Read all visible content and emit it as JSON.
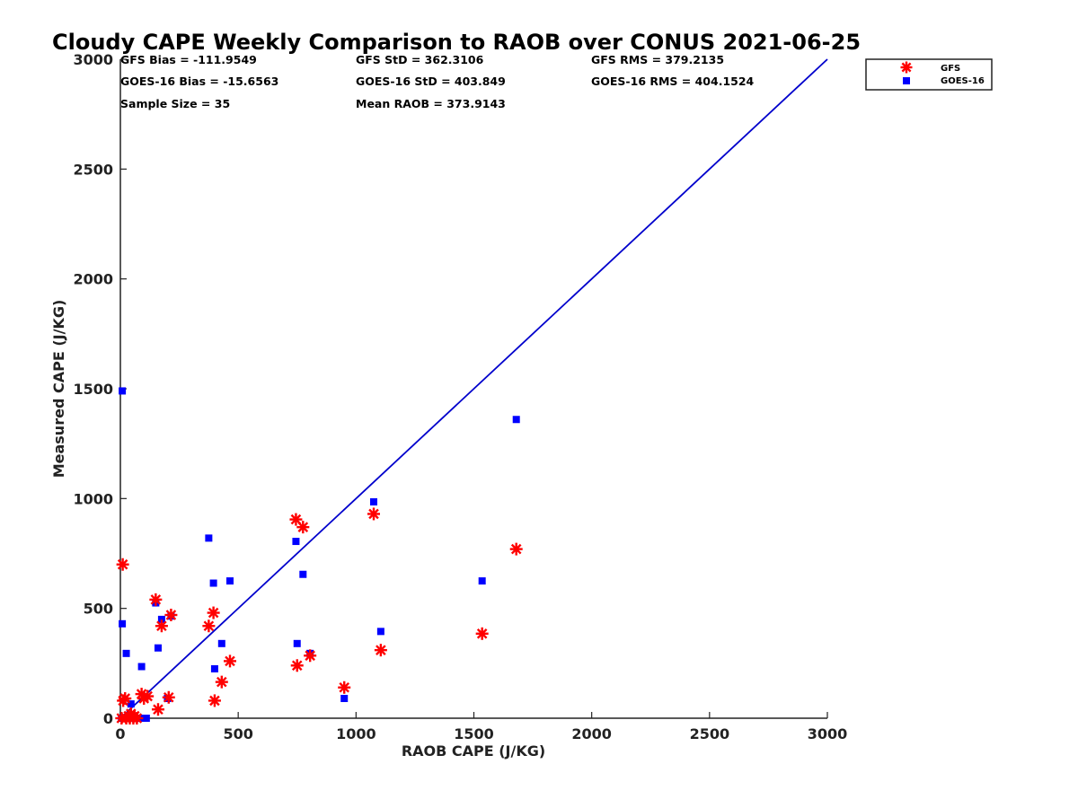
{
  "chart_data": {
    "type": "scatter",
    "title": "Cloudy CAPE Weekly Comparison to RAOB over CONUS 2021-06-25",
    "xlabel": "RAOB CAPE (J/KG)",
    "ylabel": "Measured CAPE (J/KG)",
    "xlim": [
      0,
      3000
    ],
    "ylim": [
      0,
      3000
    ],
    "xticks": [
      0,
      500,
      1000,
      1500,
      2000,
      2500,
      3000
    ],
    "yticks": [
      0,
      500,
      1000,
      1500,
      2000,
      2500,
      3000
    ],
    "xtick_labels": [
      "0",
      "500",
      "1000",
      "1500",
      "2000",
      "2500",
      "3000"
    ],
    "ytick_labels": [
      "0",
      "500",
      "1000",
      "1500",
      "2000",
      "2500",
      "3000"
    ],
    "grid": false,
    "legend_position": "top-right",
    "stats": [
      "GFS Bias = -111.9549",
      "GFS StD = 362.3106",
      "GFS RMS = 379.2135",
      "GOES-16 Bias = -15.6563",
      "GOES-16 StD = 403.849",
      "GOES-16 RMS = 404.1524",
      "Sample Size = 35",
      "Mean RAOB = 373.9143"
    ],
    "reference_line": {
      "x": [
        0,
        3000
      ],
      "y": [
        0,
        3000
      ],
      "color": "#0000cc"
    },
    "series": [
      {
        "name": "GFS",
        "marker": "asterisk",
        "color": "#ff0000",
        "points": [
          [
            10,
            700
          ],
          [
            5,
            0
          ],
          [
            12,
            80
          ],
          [
            20,
            90
          ],
          [
            25,
            0
          ],
          [
            35,
            10
          ],
          [
            40,
            0
          ],
          [
            45,
            20
          ],
          [
            55,
            0
          ],
          [
            60,
            10
          ],
          [
            70,
            0
          ],
          [
            90,
            110
          ],
          [
            100,
            90
          ],
          [
            115,
            100
          ],
          [
            150,
            540
          ],
          [
            160,
            40
          ],
          [
            175,
            420
          ],
          [
            205,
            95
          ],
          [
            215,
            470
          ],
          [
            375,
            420
          ],
          [
            395,
            480
          ],
          [
            400,
            80
          ],
          [
            430,
            165
          ],
          [
            465,
            260
          ],
          [
            745,
            905
          ],
          [
            775,
            870
          ],
          [
            750,
            240
          ],
          [
            805,
            285
          ],
          [
            950,
            140
          ],
          [
            1075,
            930
          ],
          [
            1105,
            310
          ],
          [
            1535,
            385
          ],
          [
            1680,
            770
          ]
        ]
      },
      {
        "name": "GOES-16",
        "marker": "square",
        "color": "#0000ff",
        "points": [
          [
            8,
            1490
          ],
          [
            8,
            430
          ],
          [
            25,
            295
          ],
          [
            5,
            0
          ],
          [
            15,
            0
          ],
          [
            30,
            0
          ],
          [
            45,
            65
          ],
          [
            60,
            0
          ],
          [
            80,
            0
          ],
          [
            90,
            235
          ],
          [
            110,
            0
          ],
          [
            150,
            525
          ],
          [
            160,
            320
          ],
          [
            175,
            450
          ],
          [
            200,
            90
          ],
          [
            215,
            465
          ],
          [
            375,
            820
          ],
          [
            395,
            615
          ],
          [
            400,
            225
          ],
          [
            430,
            340
          ],
          [
            465,
            625
          ],
          [
            745,
            805
          ],
          [
            775,
            655
          ],
          [
            750,
            340
          ],
          [
            805,
            295
          ],
          [
            950,
            90
          ],
          [
            1075,
            985
          ],
          [
            1105,
            395
          ],
          [
            1535,
            625
          ],
          [
            1680,
            1360
          ]
        ]
      }
    ]
  }
}
